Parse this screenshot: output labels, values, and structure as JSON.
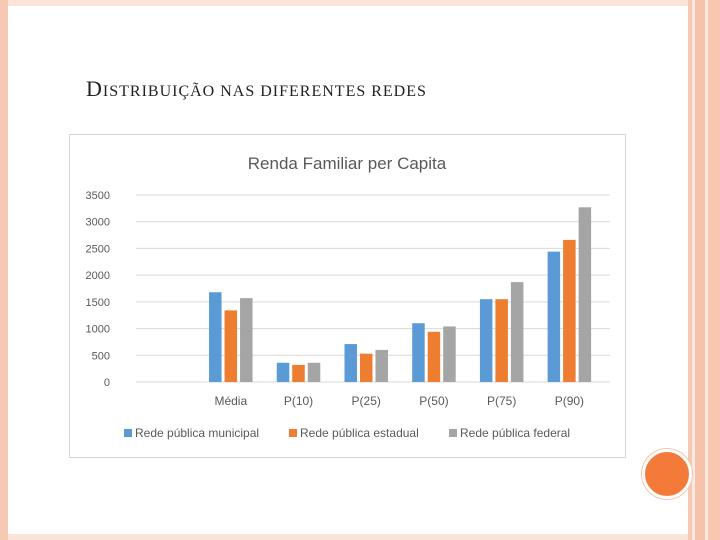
{
  "slide": {
    "title_first_letter": "D",
    "title_rest": "ISTRIBUIÇÃO NAS DIFERENTES REDES"
  },
  "theme": {
    "accent_orange": "#f47a3a",
    "border_peach": "#f6c3aa"
  },
  "chart_data": {
    "type": "bar",
    "title": "Renda Familiar per Capita",
    "xlabel": "",
    "ylabel": "",
    "categories": [
      "Média",
      "P(10)",
      "P(25)",
      "P(50)",
      "P(75)",
      "P(90)"
    ],
    "series": [
      {
        "name": "Rede pública municipal",
        "color": "#5b9bd5",
        "values": [
          1680,
          360,
          710,
          1100,
          1550,
          2440
        ]
      },
      {
        "name": "Rede pública estadual",
        "color": "#ed7d31",
        "values": [
          1340,
          320,
          530,
          940,
          1550,
          2660
        ]
      },
      {
        "name": "Rede pública federal",
        "color": "#a5a5a5",
        "values": [
          1570,
          360,
          600,
          1040,
          1870,
          3270
        ]
      }
    ],
    "yticks": [
      "0",
      "500",
      "1000",
      "1500",
      "2000",
      "2500",
      "3000",
      "3500"
    ],
    "ylim": [
      0,
      3500
    ],
    "grid": true,
    "legend_position": "bottom"
  }
}
